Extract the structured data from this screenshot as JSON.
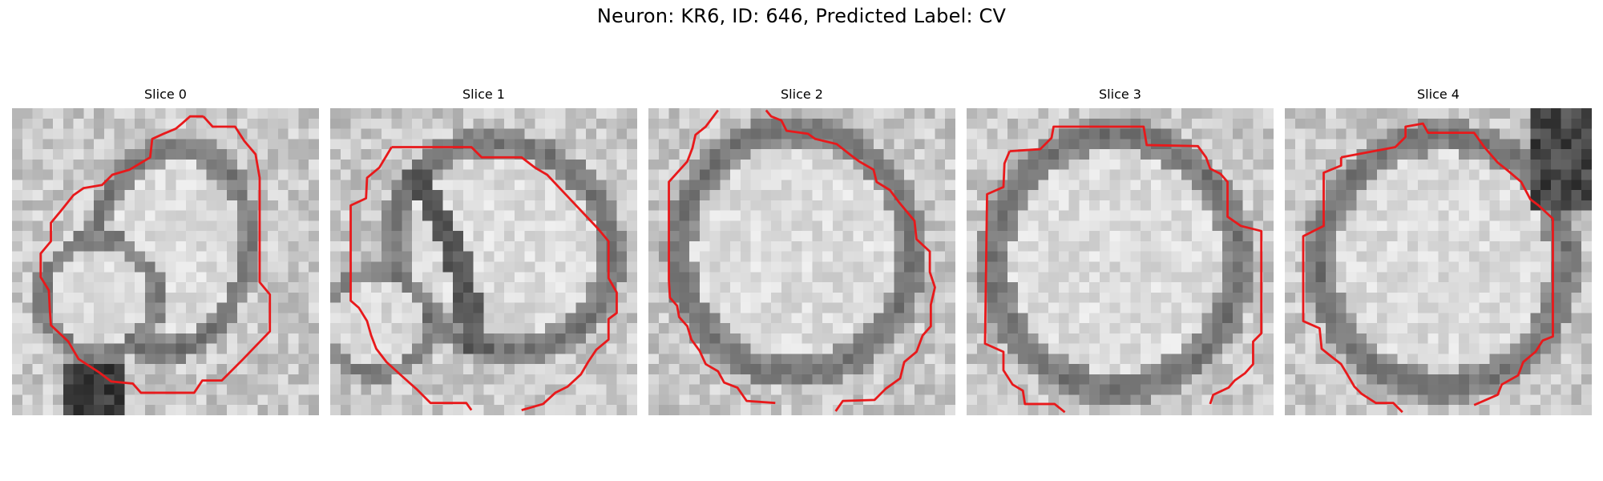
{
  "figure": {
    "title": "Neuron: KR6, ID: 646, Predicted Label: CV"
  },
  "panels": [
    {
      "title": "Slice 0",
      "image": "grayscale microscopy patch of a cell with red contour overlay",
      "seed": 11,
      "contour_color": "#e8191b"
    },
    {
      "title": "Slice 1",
      "image": "grayscale microscopy patch of a cell with red contour overlay",
      "seed": 23,
      "contour_color": "#e8191b"
    },
    {
      "title": "Slice 2",
      "image": "grayscale microscopy patch of a cell with red contour overlay",
      "seed": 37,
      "contour_color": "#e8191b"
    },
    {
      "title": "Slice 3",
      "image": "grayscale microscopy patch of a cell with red contour overlay",
      "seed": 41,
      "contour_color": "#e8191b"
    },
    {
      "title": "Slice 4",
      "image": "grayscale microscopy patch of a cell with red contour overlay",
      "seed": 53,
      "contour_color": "#e8191b"
    }
  ]
}
